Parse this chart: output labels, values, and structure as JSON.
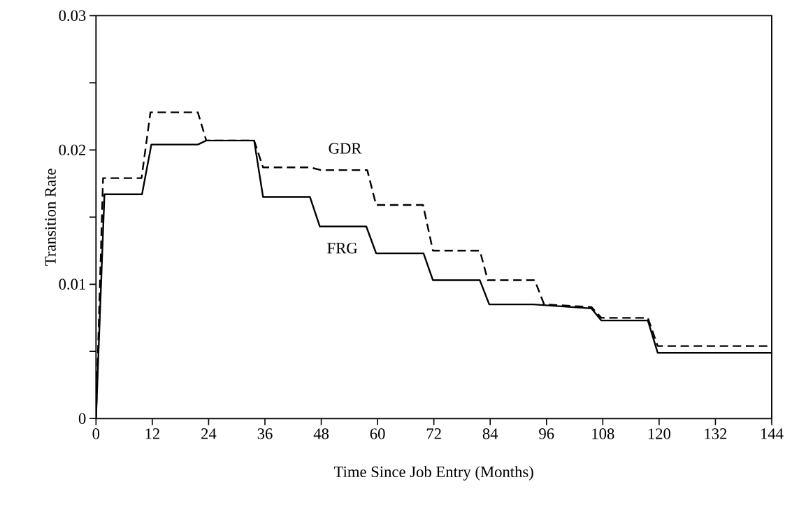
{
  "chart_data": {
    "type": "line",
    "xlabel": "Time Since Job Entry (Months)",
    "ylabel": "Transition Rate",
    "xlim": [
      0,
      144
    ],
    "ylim": [
      0,
      0.03
    ],
    "xticks": [
      0,
      12,
      24,
      36,
      48,
      60,
      72,
      84,
      96,
      108,
      120,
      132,
      144
    ],
    "yticks": [
      0,
      {
        "value": 0.005,
        "label": null
      },
      0.01,
      {
        "value": 0.015,
        "label": null
      },
      0.02,
      {
        "value": 0.025,
        "label": null
      },
      0.03
    ],
    "series": [
      {
        "name": "FRG",
        "color": "#000000",
        "line_style": "solid",
        "x": [
          0,
          1.8,
          9.8,
          11.8,
          21.7,
          23.5,
          33.7,
          35.6,
          45.6,
          47.7,
          57.6,
          59.7,
          69.8,
          71.8,
          81.8,
          83.8,
          93.2,
          105.6,
          107.7,
          117.6,
          119.7,
          144
        ],
        "values": [
          0,
          0.0167,
          0.0167,
          0.0204,
          0.0204,
          0.0207,
          0.0207,
          0.0165,
          0.0165,
          0.0143,
          0.0143,
          0.0123,
          0.0123,
          0.0103,
          0.0103,
          0.0085,
          0.0085,
          0.0082,
          0.0073,
          0.0073,
          0.0049,
          0.0049
        ]
      },
      {
        "name": "GDR",
        "color": "#000000",
        "line_style": "dashed",
        "x": [
          0,
          1.5,
          9.7,
          11.6,
          21.7,
          23.5,
          33.7,
          35.6,
          45.6,
          48,
          57.8,
          59.7,
          69.7,
          71.8,
          81.8,
          83.5,
          93.5,
          95.5,
          105.6,
          107.7,
          117.6,
          119.7,
          144
        ],
        "values": [
          0,
          0.0179,
          0.0179,
          0.0228,
          0.0228,
          0.0207,
          0.0207,
          0.0187,
          0.0187,
          0.0185,
          0.0185,
          0.0159,
          0.0159,
          0.0125,
          0.0125,
          0.0103,
          0.0103,
          0.0085,
          0.0083,
          0.0075,
          0.0075,
          0.0054,
          0.0054
        ]
      }
    ],
    "grid": false,
    "marker": "none"
  }
}
